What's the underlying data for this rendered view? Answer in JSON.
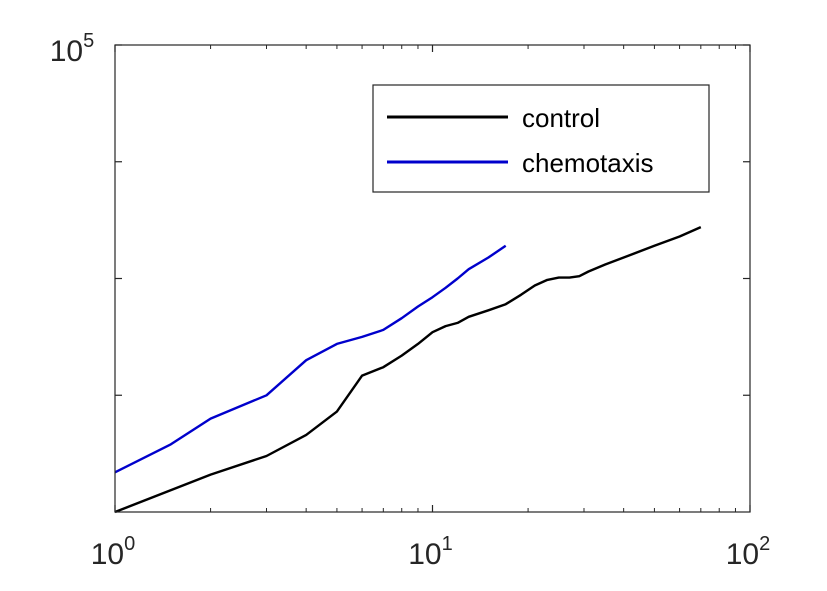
{
  "chart_data": {
    "type": "line",
    "title": "",
    "xlabel": "",
    "ylabel": "",
    "xscale": "log",
    "yscale": "log",
    "xlim": [
      1,
      100
    ],
    "ylim_exponent_top": 5,
    "grid": false,
    "legend": {
      "placement": "top-right"
    },
    "x_ticks": [
      {
        "base": "10",
        "exp": "0"
      },
      {
        "base": "10",
        "exp": "1"
      },
      {
        "base": "10",
        "exp": "2"
      }
    ],
    "y_ticks": [
      {
        "base": "10",
        "exp": "5"
      }
    ],
    "series": [
      {
        "name": "control",
        "color": "#000000",
        "points": [
          [
            1,
            0.0
          ],
          [
            2,
            0.08
          ],
          [
            3,
            0.12
          ],
          [
            4,
            0.165
          ],
          [
            5,
            0.215
          ],
          [
            6,
            0.292
          ],
          [
            7,
            0.31
          ],
          [
            8,
            0.335
          ],
          [
            9,
            0.36
          ],
          [
            10,
            0.385
          ],
          [
            11,
            0.398
          ],
          [
            12,
            0.405
          ],
          [
            13,
            0.418
          ],
          [
            15,
            0.432
          ],
          [
            17,
            0.445
          ],
          [
            19,
            0.465
          ],
          [
            21,
            0.485
          ],
          [
            23,
            0.497
          ],
          [
            25,
            0.502
          ],
          [
            27,
            0.502
          ],
          [
            29,
            0.505
          ],
          [
            31,
            0.515
          ],
          [
            35,
            0.53
          ],
          [
            40,
            0.545
          ],
          [
            50,
            0.57
          ],
          [
            60,
            0.59
          ],
          [
            70,
            0.61
          ]
        ]
      },
      {
        "name": "chemotaxis",
        "color": "#0000cc",
        "points": [
          [
            1,
            0.085
          ],
          [
            1.5,
            0.145
          ],
          [
            2,
            0.2
          ],
          [
            3,
            0.25
          ],
          [
            4,
            0.325
          ],
          [
            5,
            0.36
          ],
          [
            6,
            0.375
          ],
          [
            7,
            0.39
          ],
          [
            8,
            0.415
          ],
          [
            9,
            0.44
          ],
          [
            10,
            0.46
          ],
          [
            11,
            0.48
          ],
          [
            12,
            0.5
          ],
          [
            13,
            0.52
          ],
          [
            15,
            0.545
          ],
          [
            17,
            0.57
          ]
        ]
      }
    ]
  }
}
